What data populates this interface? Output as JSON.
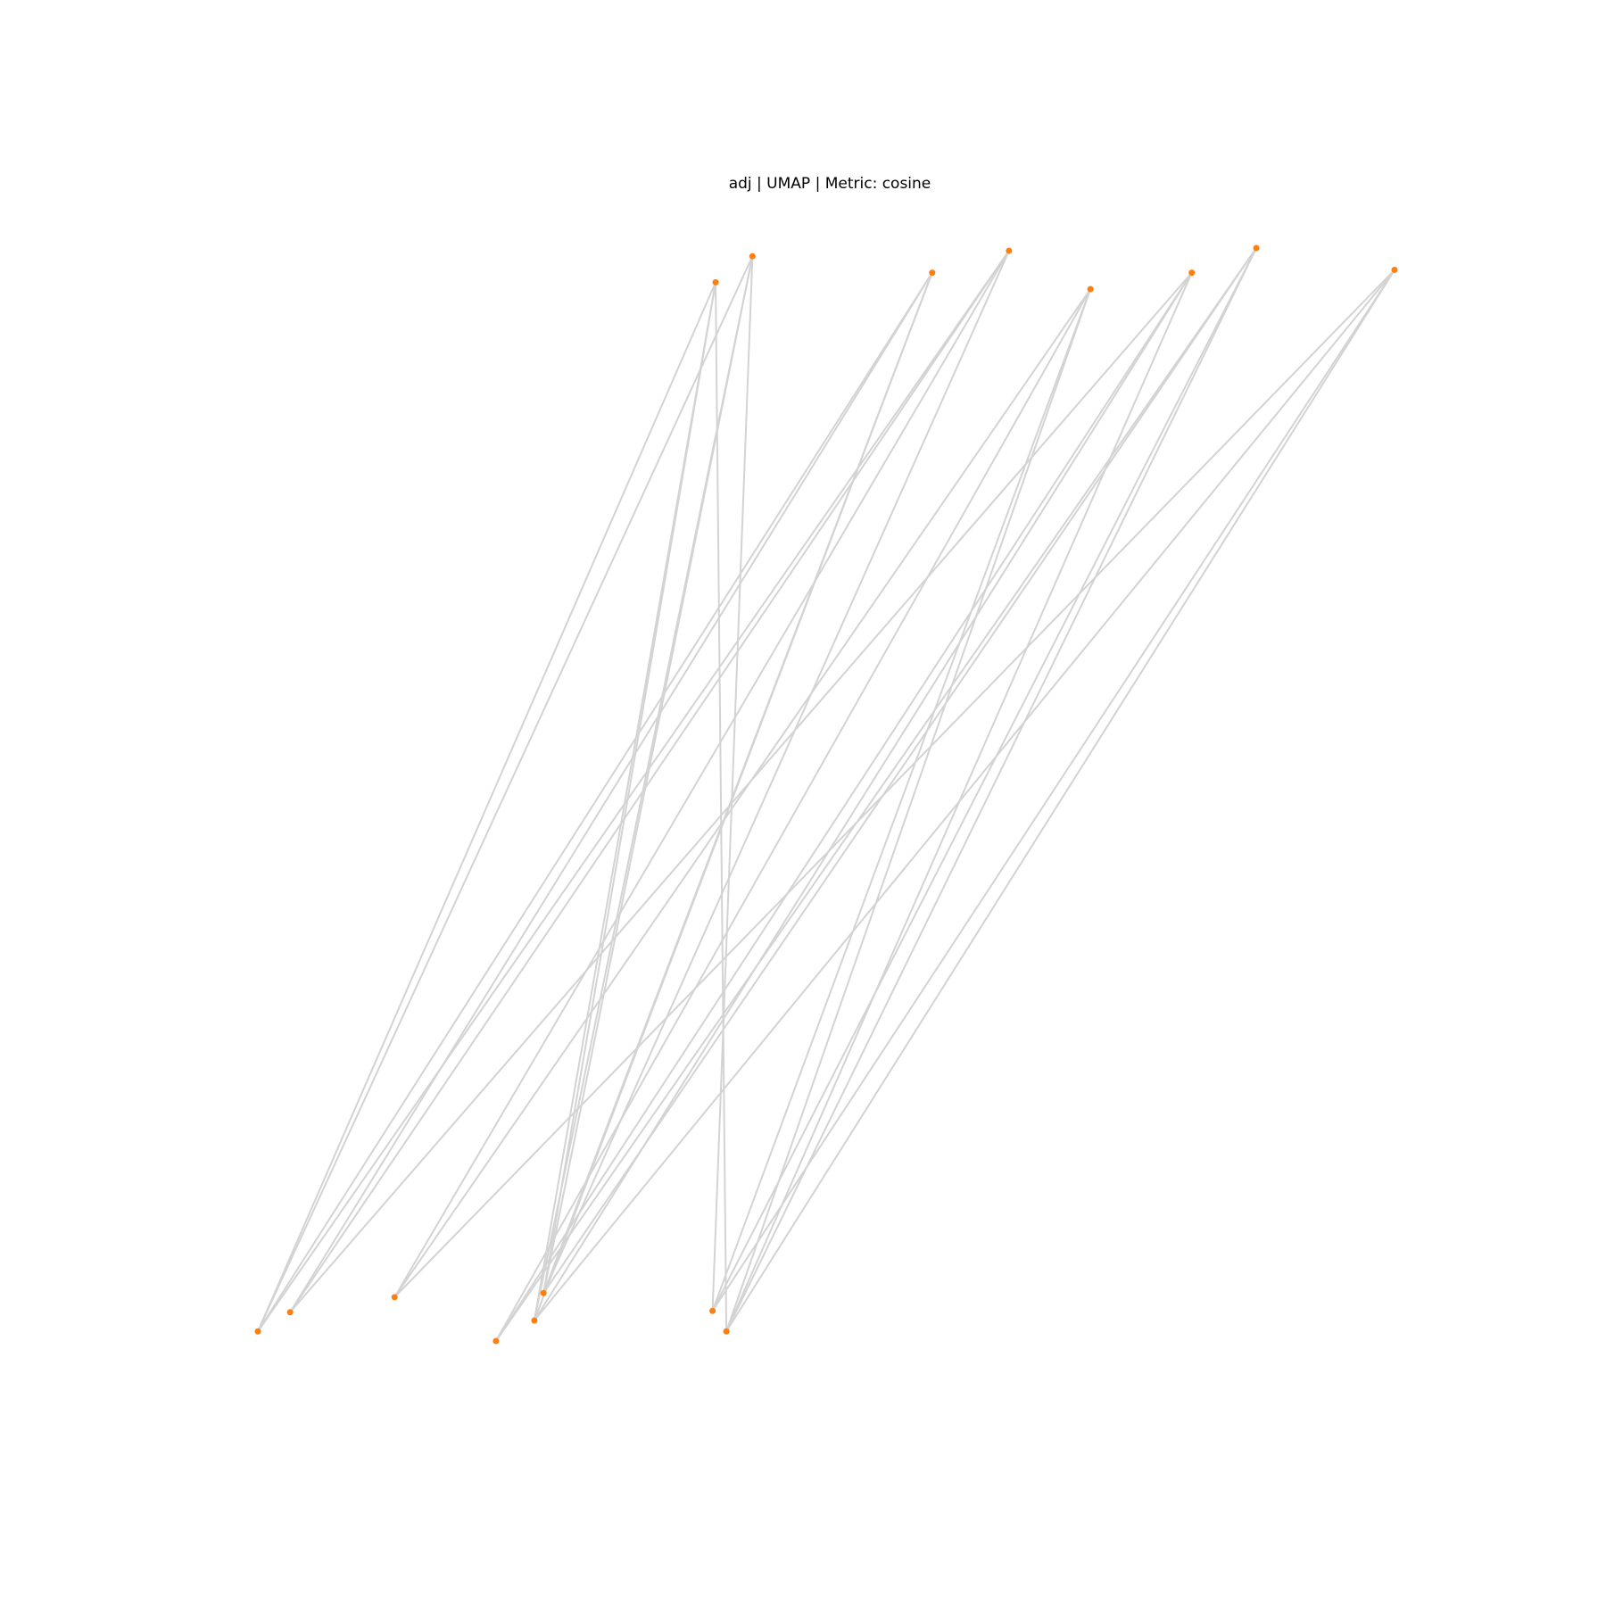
{
  "figure": {
    "title": "adj | UMAP | Metric: cosine"
  },
  "colors": {
    "node": "#ff7f0e",
    "edge": "#d3d3d3",
    "background": "#ffffff"
  },
  "chart_data": {
    "type": "network-graph",
    "title": "adj | UMAP | Metric: cosine",
    "axes_visible": false,
    "grid": false,
    "nodes": [
      {
        "id": "t1",
        "x": 0.298,
        "y": 0.882
      },
      {
        "id": "t2",
        "x": 0.322,
        "y": 0.901
      },
      {
        "id": "t3",
        "x": 0.439,
        "y": 0.889
      },
      {
        "id": "t4",
        "x": 0.489,
        "y": 0.905
      },
      {
        "id": "t5",
        "x": 0.542,
        "y": 0.877
      },
      {
        "id": "t6",
        "x": 0.608,
        "y": 0.889
      },
      {
        "id": "t7",
        "x": 0.65,
        "y": 0.907
      },
      {
        "id": "t8",
        "x": 0.74,
        "y": 0.891
      },
      {
        "id": "b1",
        "x": 0.0,
        "y": 0.116
      },
      {
        "id": "b2",
        "x": 0.021,
        "y": 0.13
      },
      {
        "id": "b3",
        "x": 0.089,
        "y": 0.141
      },
      {
        "id": "b4",
        "x": 0.155,
        "y": 0.109
      },
      {
        "id": "b5",
        "x": 0.18,
        "y": 0.124
      },
      {
        "id": "b6",
        "x": 0.186,
        "y": 0.144
      },
      {
        "id": "b7",
        "x": 0.296,
        "y": 0.131
      },
      {
        "id": "b8",
        "x": 0.305,
        "y": 0.116
      }
    ],
    "edges": [
      [
        "t1",
        "b1"
      ],
      [
        "t1",
        "b6"
      ],
      [
        "t1",
        "b5"
      ],
      [
        "t1",
        "b8"
      ],
      [
        "t2",
        "b1"
      ],
      [
        "t2",
        "b6"
      ],
      [
        "t2",
        "b5"
      ],
      [
        "t2",
        "b7"
      ],
      [
        "t3",
        "b1"
      ],
      [
        "t3",
        "b2"
      ],
      [
        "t3",
        "b6"
      ],
      [
        "t3",
        "b5"
      ],
      [
        "t4",
        "b2"
      ],
      [
        "t4",
        "b3"
      ],
      [
        "t4",
        "b1"
      ],
      [
        "t4",
        "b6"
      ],
      [
        "t5",
        "b3"
      ],
      [
        "t5",
        "b4"
      ],
      [
        "t5",
        "b7"
      ],
      [
        "t5",
        "b8"
      ],
      [
        "t6",
        "b2"
      ],
      [
        "t6",
        "b5"
      ],
      [
        "t6",
        "b4"
      ],
      [
        "t6",
        "b8"
      ],
      [
        "t7",
        "b6"
      ],
      [
        "t7",
        "b4"
      ],
      [
        "t7",
        "b7"
      ],
      [
        "t7",
        "b8"
      ],
      [
        "t8",
        "b3"
      ],
      [
        "t8",
        "b5"
      ],
      [
        "t8",
        "b7"
      ],
      [
        "t8",
        "b8"
      ]
    ]
  }
}
